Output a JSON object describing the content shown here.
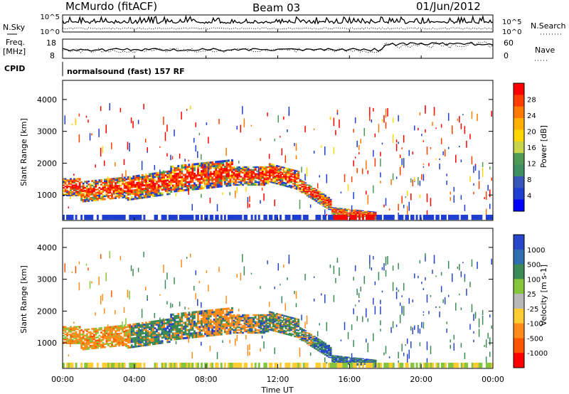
{
  "header": {
    "station": "McMurdo (fitACF)",
    "beam": "Beam 03",
    "date": "01/Jun/2012"
  },
  "noise_panel": {
    "left_label": "N.Sky",
    "right_label": "N.Search",
    "left_ticks": [
      "10^5",
      "10^0"
    ],
    "right_ticks": [
      "10^5",
      "10^0"
    ]
  },
  "freq_panel": {
    "left_label_1": "Freq.",
    "left_label_2": "[MHz]",
    "right_label": "Nave",
    "left_ticks": [
      "18",
      "8"
    ],
    "right_ticks": [
      "60",
      "0"
    ]
  },
  "cpid": {
    "label": "CPID",
    "text": "normalsound (fast) 157 RF"
  },
  "chart_data": [
    {
      "type": "heatmap",
      "name": "power",
      "ylabel": "Slant Range [km]",
      "xlabel": "",
      "x_range_hours": [
        0,
        24
      ],
      "ylim": [
        200,
        4600
      ],
      "y_ticks": [
        1000,
        2000,
        3000,
        4000
      ],
      "colorbar_label": "Power [dB]",
      "colorbar_ticks": [
        "28",
        "24",
        "20",
        "16",
        "12",
        "8",
        "4"
      ],
      "colorbar_colors": [
        "#ff0000",
        "#ff3d00",
        "#ff7a00",
        "#ffb000",
        "#ffd700",
        "#c8d44a",
        "#4f9a55",
        "#3e8f62",
        "#3957b8",
        "#1f3fd1",
        "#0000ff"
      ]
    },
    {
      "type": "heatmap",
      "name": "velocity",
      "ylabel": "Slant Range [km]",
      "xlabel": "Time UT",
      "x_range_hours": [
        0,
        24
      ],
      "x_ticks": [
        "00:00",
        "04:00",
        "08:00",
        "12:00",
        "16:00",
        "20:00",
        "00:00"
      ],
      "ylim": [
        200,
        4600
      ],
      "y_ticks": [
        1000,
        2000,
        3000,
        4000
      ],
      "colorbar_label": "Velocity [m s-1]",
      "colorbar_ticks": [
        "1000",
        "500",
        "100",
        "25",
        "-25",
        "-100",
        "-500",
        "-1000"
      ],
      "colorbar_colors": [
        "#2846c8",
        "#2f6fb0",
        "#3c8a56",
        "#86c63c",
        "#b8b8b8",
        "#ffcc33",
        "#ff8c1a",
        "#ff5500",
        "#ff0000"
      ]
    }
  ]
}
